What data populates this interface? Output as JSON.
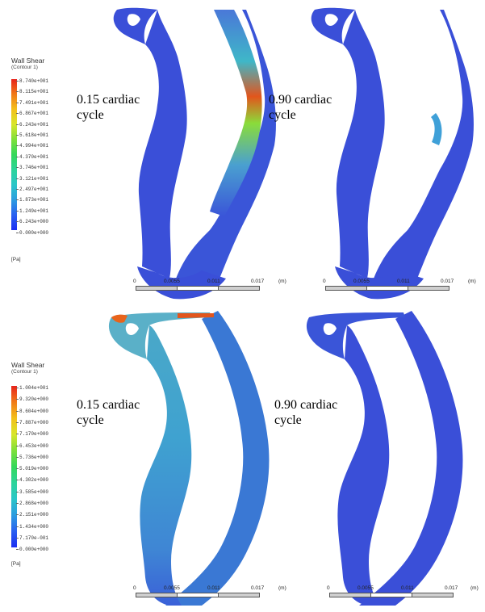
{
  "top": {
    "legend": {
      "title": "Wall Shear",
      "subtitle": "(Contour 1)",
      "unit": "[Pa]",
      "ticks": [
        "8.740e+001",
        "8.115e+001",
        "7.491e+001",
        "6.867e+001",
        "6.243e+001",
        "5.618e+001",
        "4.994e+001",
        "4.370e+001",
        "3.746e+001",
        "3.121e+001",
        "2.497e+001",
        "1.873e+001",
        "1.249e+001",
        "6.243e+000",
        "0.000e+000"
      ]
    },
    "left_label": "0.15 cardiac\ncycle",
    "right_label": "0.90 cardiac\ncycle",
    "scale_left": {
      "t0": "0",
      "t1": "0.0055",
      "t2": "0.011",
      "t3": "0.017",
      "unit": "(m)"
    },
    "scale_right": {
      "t0": "0",
      "t1": "0.0055",
      "t2": "0.011",
      "t3": "0.017",
      "unit": "(m)"
    }
  },
  "bottom": {
    "legend": {
      "title": "Wall Shear",
      "subtitle": "(Contour 1)",
      "unit": "[Pa]",
      "ticks": [
        "1.004e+001",
        "9.320e+000",
        "8.604e+000",
        "7.887e+000",
        "7.170e+000",
        "6.453e+000",
        "5.736e+000",
        "5.019e+000",
        "4.302e+000",
        "3.585e+000",
        "2.868e+000",
        "2.151e+000",
        "1.434e+000",
        "7.170e-001",
        "0.000e+000"
      ]
    },
    "left_label": "0.15 cardiac\ncycle",
    "right_label": "0.90 cardiac\ncycle",
    "scale_left": {
      "t0": "0",
      "t1": "0.0055",
      "t2": "0.011",
      "t3": "0.017",
      "unit": "(m)"
    },
    "scale_right": {
      "t0": "0",
      "t1": "0.0055",
      "t2": "0.011",
      "t3": "0.017",
      "unit": "(m)"
    }
  },
  "colors": {
    "vessel_low": "#3a4fd8",
    "vessel_mid": "#3fb7c8",
    "vessel_high": "#e23a1c"
  }
}
